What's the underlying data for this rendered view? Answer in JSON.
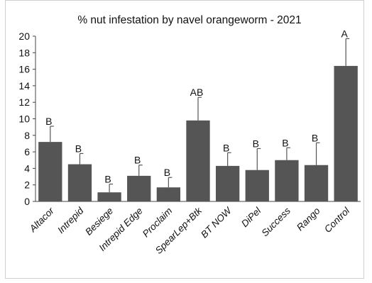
{
  "chart_data": {
    "type": "bar",
    "title": "% nut infestation by navel orangeworm - 2021",
    "xlabel": "",
    "ylabel": "",
    "ylim": [
      0,
      20
    ],
    "yticks": [
      0,
      2,
      4,
      6,
      8,
      10,
      12,
      14,
      16,
      18,
      20
    ],
    "grid": false,
    "categories": [
      "Altacor",
      "Intrepid",
      "Besiege",
      "Intrepid Edge",
      "Proclaim",
      "SpearLep+Btk",
      "BT NOW",
      "DiPel",
      "Success",
      "Rango",
      "Control"
    ],
    "values": [
      7.2,
      4.5,
      1.1,
      3.1,
      1.7,
      9.8,
      4.3,
      3.8,
      5.0,
      4.4,
      16.4
    ],
    "error_upper": [
      9.1,
      5.8,
      2.1,
      4.4,
      2.9,
      12.6,
      5.9,
      6.4,
      6.5,
      7.1,
      19.7
    ],
    "labels": [
      "B",
      "B",
      "B",
      "B",
      "B",
      "AB",
      "B",
      "B",
      "B",
      "B",
      "A"
    ],
    "bar_color": "#555555"
  }
}
